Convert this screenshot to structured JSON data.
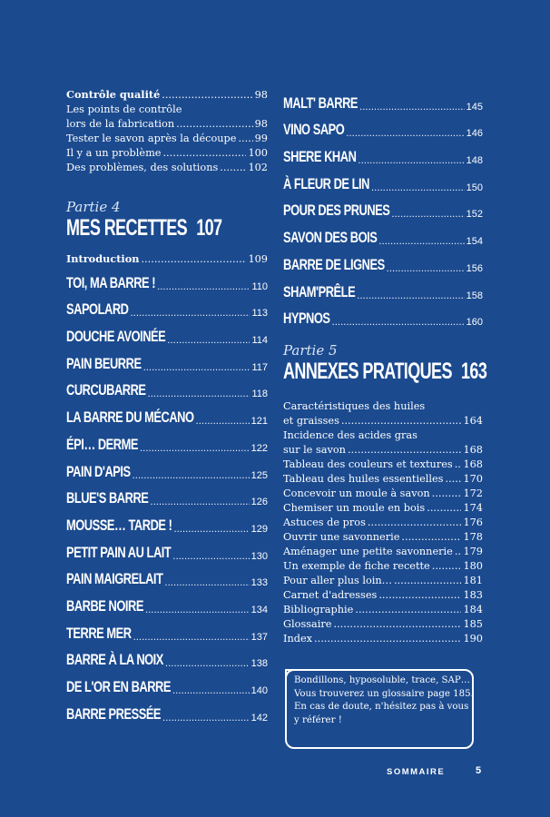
{
  "left_top": [
    {
      "title": "Contrôle qualité",
      "page": "98",
      "bold": true
    },
    {
      "title_line1": "Les points de contrôle",
      "title": "lors de la fabrication",
      "page": "98"
    },
    {
      "title": "Tester le savon après la découpe",
      "page": "99"
    },
    {
      "title": "Il y a un problème",
      "page": "100"
    },
    {
      "title": "Des problèmes, des solutions",
      "page": "102"
    }
  ],
  "part4": {
    "label": "Partie 4",
    "title": "MES RECETTES",
    "page": "107"
  },
  "part4_intro": {
    "title": "Introduction",
    "page": "109"
  },
  "part4_recipes": [
    {
      "title": "TOI, MA BARRE !",
      "page": "110"
    },
    {
      "title": "SAPOLARD",
      "page": "113"
    },
    {
      "title": "DOUCHE AVOINÉE",
      "page": "114"
    },
    {
      "title": "PAIN BEURRE",
      "page": "117"
    },
    {
      "title": "CURCUBARRE",
      "page": "118"
    },
    {
      "title": "LA BARRE DU MÉCANO",
      "page": "121"
    },
    {
      "title": "ÉPI… DERME",
      "page": "122"
    },
    {
      "title": "PAIN D'APIS",
      "page": "125"
    },
    {
      "title": "BLUE'S BARRE",
      "page": "126"
    },
    {
      "title": "MOUSSE… TARDE !",
      "page": "129"
    },
    {
      "title": "PETIT PAIN AU LAIT",
      "page": "130"
    },
    {
      "title": "PAIN MAIGRELAIT",
      "page": "133"
    },
    {
      "title": "BARBE NOIRE",
      "page": "134"
    },
    {
      "title": "TERRE MER",
      "page": "137"
    },
    {
      "title": "BARRE À LA NOIX",
      "page": "138"
    },
    {
      "title": "DE L'OR EN BARRE",
      "page": "140"
    },
    {
      "title": "BARRE PRESSÉE",
      "page": "142"
    }
  ],
  "right_recipes": [
    {
      "title": "MALT' BARRE",
      "page": "145"
    },
    {
      "title": "VINO SAPO",
      "page": "146"
    },
    {
      "title": "SHERE KHAN",
      "page": "148"
    },
    {
      "title": "À FLEUR DE LIN",
      "page": "150"
    },
    {
      "title": "POUR DES PRUNES",
      "page": "152"
    },
    {
      "title": "SAVON DES BOIS",
      "page": "154"
    },
    {
      "title": "BARRE DE LIGNES",
      "page": "156"
    },
    {
      "title": "SHAM'PRÊLE",
      "page": "158"
    },
    {
      "title": "HYPNOS",
      "page": "160"
    }
  ],
  "part5": {
    "label": "Partie 5",
    "title": "ANNEXES PRATIQUES",
    "page": "163"
  },
  "part5_entries": [
    {
      "title_line1": "Caractéristiques des huiles",
      "title": "et graisses",
      "page": "164"
    },
    {
      "title_line1": "Incidence des acides gras",
      "title": "sur le savon",
      "page": "168"
    },
    {
      "title": "Tableau des couleurs et textures",
      "page": "168"
    },
    {
      "title": "Tableau des huiles essentielles",
      "page": "170"
    },
    {
      "title": "Concevoir un moule à savon",
      "page": "172"
    },
    {
      "title": "Chemiser un moule en bois",
      "page": "174"
    },
    {
      "title": "Astuces de pros",
      "page": "176"
    },
    {
      "title": "Ouvrir une savonnerie",
      "page": "178"
    },
    {
      "title": "Aménager une petite savonnerie",
      "page": "179"
    },
    {
      "title": "Un exemple de fiche recette",
      "page": "180"
    },
    {
      "title": "Pour aller plus loin…",
      "page": "181"
    },
    {
      "title": "Carnet d'adresses",
      "page": "183"
    },
    {
      "title": "Bibliographie",
      "page": "184"
    },
    {
      "title": "Glossaire",
      "page": "185"
    },
    {
      "title": "Index",
      "page": "190"
    }
  ],
  "tip_box": {
    "lines": [
      "Bondillons, hyposoluble, trace, SAP…",
      "Vous trouverez un glossaire page 185.",
      "En cas de doute, n'hésitez pas à vous",
      "y référer !"
    ]
  },
  "footer": {
    "section": "SOMMAIRE",
    "page": "5"
  },
  "colors": {
    "background": "#1b4a8f",
    "text": "#ffffff"
  }
}
